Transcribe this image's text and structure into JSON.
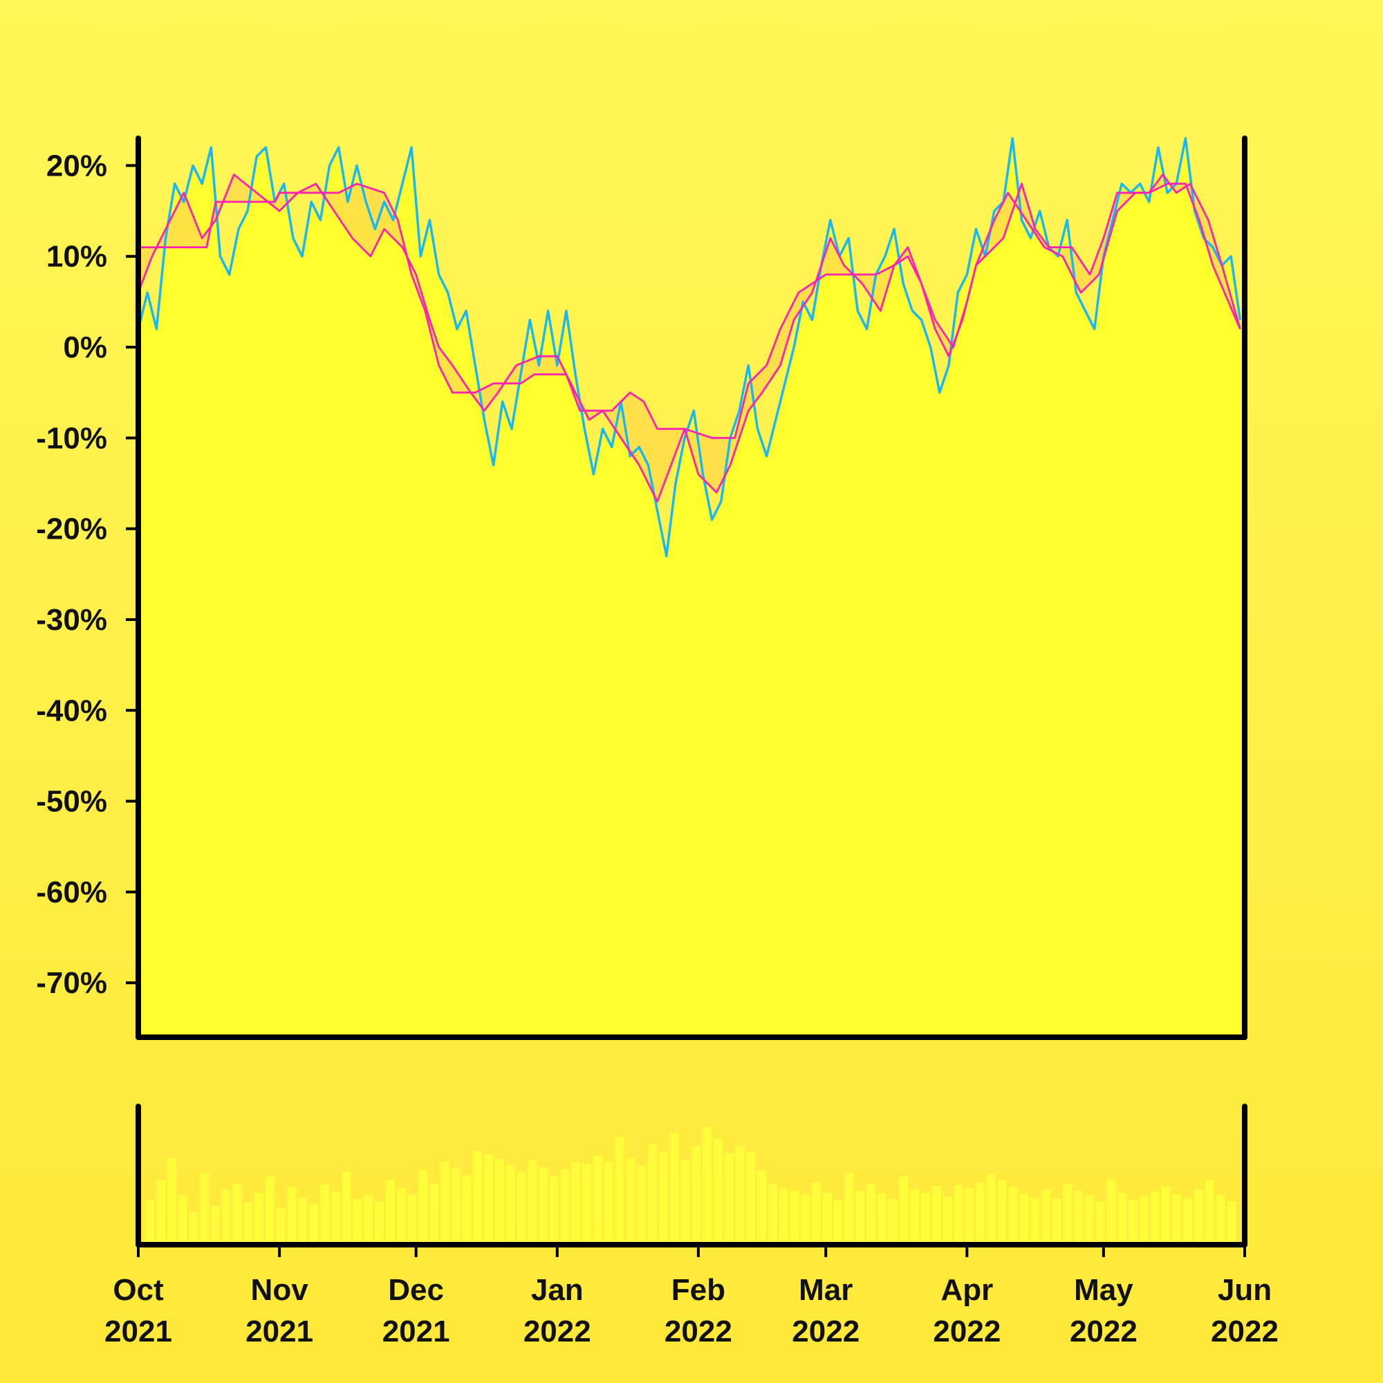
{
  "chart_data": {
    "type": "line",
    "title": "",
    "xlabel": "",
    "ylabel": "",
    "x_range": [
      "2021-10-01",
      "2022-06-01"
    ],
    "ylim": [
      -76,
      23
    ],
    "y_ticks": [
      "20%",
      "10%",
      "0%",
      "-10%",
      "-20%",
      "-30%",
      "-40%",
      "-50%",
      "-60%",
      "-70%"
    ],
    "y_tick_values": [
      20,
      10,
      0,
      -10,
      -20,
      -30,
      -40,
      -50,
      -60,
      -70
    ],
    "x_ticks": [
      {
        "date": "2021-10-01",
        "month": "Oct",
        "year": "2021"
      },
      {
        "date": "2021-11-01",
        "month": "Nov",
        "year": "2021"
      },
      {
        "date": "2021-12-01",
        "month": "Dec",
        "year": "2021"
      },
      {
        "date": "2022-01-01",
        "month": "Jan",
        "year": "2022"
      },
      {
        "date": "2022-02-01",
        "month": "Feb",
        "year": "2022"
      },
      {
        "date": "2022-03-01",
        "month": "Mar",
        "year": "2022"
      },
      {
        "date": "2022-04-01",
        "month": "Apr",
        "year": "2022"
      },
      {
        "date": "2022-05-01",
        "month": "May",
        "year": "2022"
      },
      {
        "date": "2022-06-01",
        "month": "Jun",
        "year": "2022"
      }
    ],
    "colors": {
      "price": "#1ab8f0",
      "bands": "#ff22b0",
      "band_fill": "#ffd84a",
      "area_fill": "#ffff30",
      "volume": "#ffff3a",
      "axis": "#000000"
    },
    "series": [
      {
        "key": "price",
        "points": [
          [
            "2021-10-01",
            2
          ],
          [
            "2021-10-03",
            6
          ],
          [
            "2021-10-05",
            2
          ],
          [
            "2021-10-07",
            12
          ],
          [
            "2021-10-09",
            18
          ],
          [
            "2021-10-11",
            16
          ],
          [
            "2021-10-13",
            20
          ],
          [
            "2021-10-15",
            18
          ],
          [
            "2021-10-17",
            22
          ],
          [
            "2021-10-19",
            10
          ],
          [
            "2021-10-21",
            8
          ],
          [
            "2021-10-23",
            13
          ],
          [
            "2021-10-25",
            15
          ],
          [
            "2021-10-27",
            21
          ],
          [
            "2021-10-29",
            22
          ],
          [
            "2021-10-31",
            16
          ],
          [
            "2021-11-02",
            18
          ],
          [
            "2021-11-04",
            12
          ],
          [
            "2021-11-06",
            10
          ],
          [
            "2021-11-08",
            16
          ],
          [
            "2021-11-10",
            14
          ],
          [
            "2021-11-12",
            20
          ],
          [
            "2021-11-14",
            22
          ],
          [
            "2021-11-16",
            16
          ],
          [
            "2021-11-18",
            20
          ],
          [
            "2021-11-20",
            16
          ],
          [
            "2021-11-22",
            13
          ],
          [
            "2021-11-24",
            16
          ],
          [
            "2021-11-26",
            14
          ],
          [
            "2021-11-28",
            18
          ],
          [
            "2021-11-30",
            22
          ],
          [
            "2021-12-02",
            10
          ],
          [
            "2021-12-04",
            14
          ],
          [
            "2021-12-06",
            8
          ],
          [
            "2021-12-08",
            6
          ],
          [
            "2021-12-10",
            2
          ],
          [
            "2021-12-12",
            4
          ],
          [
            "2021-12-14",
            -2
          ],
          [
            "2021-12-16",
            -8
          ],
          [
            "2021-12-18",
            -13
          ],
          [
            "2021-12-20",
            -6
          ],
          [
            "2021-12-22",
            -9
          ],
          [
            "2021-12-24",
            -3
          ],
          [
            "2021-12-26",
            3
          ],
          [
            "2021-12-28",
            -2
          ],
          [
            "2021-12-30",
            4
          ],
          [
            "2022-01-01",
            -2
          ],
          [
            "2022-01-03",
            4
          ],
          [
            "2022-01-05",
            -3
          ],
          [
            "2022-01-07",
            -9
          ],
          [
            "2022-01-09",
            -14
          ],
          [
            "2022-01-11",
            -9
          ],
          [
            "2022-01-13",
            -11
          ],
          [
            "2022-01-15",
            -6
          ],
          [
            "2022-01-17",
            -12
          ],
          [
            "2022-01-19",
            -11
          ],
          [
            "2022-01-21",
            -13
          ],
          [
            "2022-01-23",
            -18
          ],
          [
            "2022-01-25",
            -23
          ],
          [
            "2022-01-27",
            -15
          ],
          [
            "2022-01-29",
            -10
          ],
          [
            "2022-01-31",
            -7
          ],
          [
            "2022-02-02",
            -14
          ],
          [
            "2022-02-04",
            -19
          ],
          [
            "2022-02-06",
            -17
          ],
          [
            "2022-02-08",
            -10
          ],
          [
            "2022-02-10",
            -7
          ],
          [
            "2022-02-12",
            -2
          ],
          [
            "2022-02-14",
            -9
          ],
          [
            "2022-02-16",
            -12
          ],
          [
            "2022-02-18",
            -8
          ],
          [
            "2022-02-20",
            -4
          ],
          [
            "2022-02-22",
            0
          ],
          [
            "2022-02-24",
            5
          ],
          [
            "2022-02-26",
            3
          ],
          [
            "2022-02-28",
            9
          ],
          [
            "2022-03-02",
            14
          ],
          [
            "2022-03-04",
            10
          ],
          [
            "2022-03-06",
            12
          ],
          [
            "2022-03-08",
            4
          ],
          [
            "2022-03-10",
            2
          ],
          [
            "2022-03-12",
            8
          ],
          [
            "2022-03-14",
            10
          ],
          [
            "2022-03-16",
            13
          ],
          [
            "2022-03-18",
            7
          ],
          [
            "2022-03-20",
            4
          ],
          [
            "2022-03-22",
            3
          ],
          [
            "2022-03-24",
            0
          ],
          [
            "2022-03-26",
            -5
          ],
          [
            "2022-03-28",
            -2
          ],
          [
            "2022-03-30",
            6
          ],
          [
            "2022-04-01",
            8
          ],
          [
            "2022-04-03",
            13
          ],
          [
            "2022-04-05",
            10
          ],
          [
            "2022-04-07",
            15
          ],
          [
            "2022-04-09",
            16
          ],
          [
            "2022-04-11",
            23
          ],
          [
            "2022-04-13",
            14
          ],
          [
            "2022-04-15",
            12
          ],
          [
            "2022-04-17",
            15
          ],
          [
            "2022-04-19",
            11
          ],
          [
            "2022-04-21",
            10
          ],
          [
            "2022-04-23",
            14
          ],
          [
            "2022-04-25",
            6
          ],
          [
            "2022-04-27",
            4
          ],
          [
            "2022-04-29",
            2
          ],
          [
            "2022-05-01",
            10
          ],
          [
            "2022-05-03",
            14
          ],
          [
            "2022-05-05",
            18
          ],
          [
            "2022-05-07",
            17
          ],
          [
            "2022-05-09",
            18
          ],
          [
            "2022-05-11",
            16
          ],
          [
            "2022-05-13",
            22
          ],
          [
            "2022-05-15",
            17
          ],
          [
            "2022-05-17",
            18
          ],
          [
            "2022-05-19",
            23
          ],
          [
            "2022-05-21",
            15
          ],
          [
            "2022-05-23",
            12
          ],
          [
            "2022-05-25",
            11
          ],
          [
            "2022-05-27",
            9
          ],
          [
            "2022-05-29",
            10
          ],
          [
            "2022-05-31",
            3
          ]
        ]
      },
      {
        "key": "upper_band",
        "points": [
          [
            "2021-10-01",
            11
          ],
          [
            "2021-10-16",
            11
          ],
          [
            "2021-10-18",
            16
          ],
          [
            "2021-10-31",
            16
          ],
          [
            "2021-11-01",
            17
          ],
          [
            "2021-11-14",
            17
          ],
          [
            "2021-11-18",
            18
          ],
          [
            "2021-11-24",
            17
          ],
          [
            "2021-11-27",
            14
          ],
          [
            "2021-11-30",
            8
          ],
          [
            "2021-12-03",
            4
          ],
          [
            "2021-12-06",
            -2
          ],
          [
            "2021-12-09",
            -5
          ],
          [
            "2021-12-14",
            -5
          ],
          [
            "2021-12-18",
            -4
          ],
          [
            "2021-12-24",
            -4
          ],
          [
            "2021-12-27",
            -3
          ],
          [
            "2022-01-03",
            -3
          ],
          [
            "2022-01-06",
            -7
          ],
          [
            "2022-01-13",
            -7
          ],
          [
            "2022-01-17",
            -5
          ],
          [
            "2022-01-20",
            -6
          ],
          [
            "2022-01-23",
            -9
          ],
          [
            "2022-01-29",
            -9
          ],
          [
            "2022-02-04",
            -10
          ],
          [
            "2022-02-09",
            -10
          ],
          [
            "2022-02-12",
            -4
          ],
          [
            "2022-02-16",
            -2
          ],
          [
            "2022-02-19",
            2
          ],
          [
            "2022-02-23",
            6
          ],
          [
            "2022-03-01",
            8
          ],
          [
            "2022-03-12",
            8
          ],
          [
            "2022-03-16",
            9
          ],
          [
            "2022-03-19",
            11
          ],
          [
            "2022-03-22",
            7
          ],
          [
            "2022-03-25",
            3
          ],
          [
            "2022-03-29",
            0
          ],
          [
            "2022-04-01",
            5
          ],
          [
            "2022-04-03",
            9
          ],
          [
            "2022-04-09",
            12
          ],
          [
            "2022-04-13",
            18
          ],
          [
            "2022-04-16",
            13
          ],
          [
            "2022-04-19",
            11
          ],
          [
            "2022-04-24",
            11
          ],
          [
            "2022-04-28",
            8
          ],
          [
            "2022-05-01",
            12
          ],
          [
            "2022-05-04",
            17
          ],
          [
            "2022-05-11",
            17
          ],
          [
            "2022-05-15",
            18
          ],
          [
            "2022-05-19",
            18
          ],
          [
            "2022-05-22",
            14
          ],
          [
            "2022-05-25",
            9
          ],
          [
            "2022-05-31",
            2
          ]
        ]
      },
      {
        "key": "lower_band",
        "points": [
          [
            "2021-10-01",
            6
          ],
          [
            "2021-10-04",
            10
          ],
          [
            "2021-10-08",
            14
          ],
          [
            "2021-10-11",
            17
          ],
          [
            "2021-10-15",
            12
          ],
          [
            "2021-10-18",
            14
          ],
          [
            "2021-10-22",
            19
          ],
          [
            "2021-10-27",
            17
          ],
          [
            "2021-11-01",
            15
          ],
          [
            "2021-11-05",
            17
          ],
          [
            "2021-11-09",
            18
          ],
          [
            "2021-11-13",
            15
          ],
          [
            "2021-11-17",
            12
          ],
          [
            "2021-11-21",
            10
          ],
          [
            "2021-11-24",
            13
          ],
          [
            "2021-11-28",
            11
          ],
          [
            "2021-12-01",
            8
          ],
          [
            "2021-12-04",
            3
          ],
          [
            "2021-12-06",
            0
          ],
          [
            "2021-12-09",
            -2
          ],
          [
            "2021-12-13",
            -5
          ],
          [
            "2021-12-16",
            -7
          ],
          [
            "2021-12-19",
            -5
          ],
          [
            "2021-12-23",
            -2
          ],
          [
            "2021-12-28",
            -1
          ],
          [
            "2022-01-01",
            -1
          ],
          [
            "2022-01-04",
            -4
          ],
          [
            "2022-01-08",
            -8
          ],
          [
            "2022-01-11",
            -7
          ],
          [
            "2022-01-15",
            -10
          ],
          [
            "2022-01-19",
            -13
          ],
          [
            "2022-01-23",
            -17
          ],
          [
            "2022-01-26",
            -13
          ],
          [
            "2022-01-29",
            -9
          ],
          [
            "2022-02-01",
            -14
          ],
          [
            "2022-02-05",
            -16
          ],
          [
            "2022-02-08",
            -13
          ],
          [
            "2022-02-12",
            -7
          ],
          [
            "2022-02-15",
            -5
          ],
          [
            "2022-02-19",
            -2
          ],
          [
            "2022-02-22",
            3
          ],
          [
            "2022-02-26",
            6
          ],
          [
            "2022-03-02",
            12
          ],
          [
            "2022-03-05",
            9
          ],
          [
            "2022-03-09",
            7
          ],
          [
            "2022-03-13",
            4
          ],
          [
            "2022-03-16",
            9
          ],
          [
            "2022-03-19",
            10
          ],
          [
            "2022-03-22",
            7
          ],
          [
            "2022-03-25",
            2
          ],
          [
            "2022-03-28",
            -1
          ],
          [
            "2022-03-31",
            3
          ],
          [
            "2022-04-03",
            9
          ],
          [
            "2022-04-07",
            14
          ],
          [
            "2022-04-10",
            17
          ],
          [
            "2022-04-14",
            14
          ],
          [
            "2022-04-18",
            11
          ],
          [
            "2022-04-22",
            10
          ],
          [
            "2022-04-26",
            6
          ],
          [
            "2022-04-30",
            8
          ],
          [
            "2022-05-04",
            15
          ],
          [
            "2022-05-08",
            17
          ],
          [
            "2022-05-11",
            17
          ],
          [
            "2022-05-14",
            19
          ],
          [
            "2022-05-17",
            17
          ],
          [
            "2022-05-20",
            18
          ],
          [
            "2022-05-24",
            14
          ],
          [
            "2022-05-27",
            9
          ],
          [
            "2022-05-31",
            2
          ]
        ]
      }
    ],
    "volume_relative": [
      0.38,
      0.55,
      0.74,
      0.42,
      0.28,
      0.61,
      0.33,
      0.47,
      0.52,
      0.36,
      0.44,
      0.58,
      0.31,
      0.49,
      0.4,
      0.35,
      0.51,
      0.45,
      0.62,
      0.39,
      0.42,
      0.37,
      0.55,
      0.48,
      0.43,
      0.64,
      0.52,
      0.71,
      0.65,
      0.59,
      0.8,
      0.77,
      0.73,
      0.68,
      0.62,
      0.72,
      0.66,
      0.58,
      0.64,
      0.7,
      0.69,
      0.76,
      0.71,
      0.92,
      0.74,
      0.67,
      0.86,
      0.79,
      0.95,
      0.72,
      0.84,
      1.0,
      0.9,
      0.78,
      0.84,
      0.79,
      0.63,
      0.52,
      0.48,
      0.46,
      0.43,
      0.53,
      0.44,
      0.38,
      0.61,
      0.46,
      0.52,
      0.44,
      0.39,
      0.58,
      0.47,
      0.44,
      0.5,
      0.41,
      0.51,
      0.48,
      0.53,
      0.6,
      0.55,
      0.49,
      0.43,
      0.4,
      0.47,
      0.39,
      0.52,
      0.46,
      0.42,
      0.37,
      0.56,
      0.44,
      0.38,
      0.41,
      0.45,
      0.49,
      0.43,
      0.4,
      0.47,
      0.55,
      0.42,
      0.37
    ]
  }
}
